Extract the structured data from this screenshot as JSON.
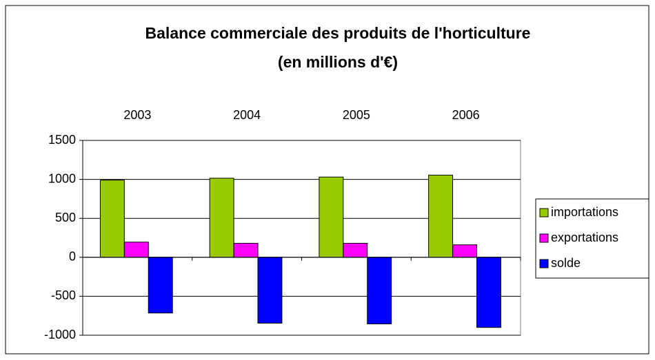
{
  "chart_data": {
    "type": "bar",
    "title": [
      "Balance commerciale des produits de l'horticulture",
      "(en millions d'€)"
    ],
    "categories": [
      "2003",
      "2004",
      "2005",
      "2006"
    ],
    "series": [
      {
        "name": "importations",
        "color": "#99cc00",
        "values": [
          990,
          1015,
          1030,
          1055
        ]
      },
      {
        "name": "exportations",
        "color": "#ff00ff",
        "values": [
          195,
          180,
          180,
          160
        ]
      },
      {
        "name": "solde",
        "color": "#0000ff",
        "values": [
          -715,
          -845,
          -855,
          -900
        ]
      }
    ],
    "ylim": [
      -1000,
      1500
    ],
    "yticks": [
      -1000,
      -500,
      0,
      500,
      1000,
      1500
    ],
    "grid": true,
    "legend": "right"
  }
}
